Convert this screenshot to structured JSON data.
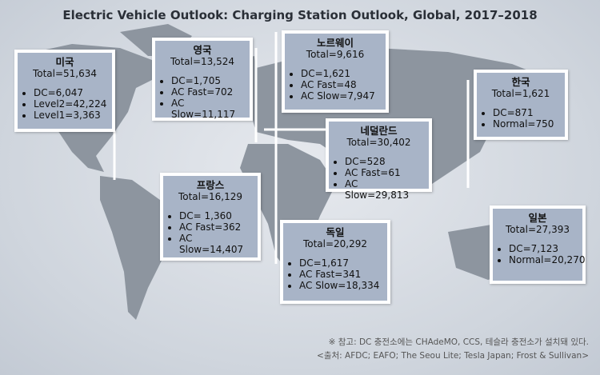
{
  "title": "Electric Vehicle Outlook: Charging Station Outlook, Global, 2017–2018",
  "boxes": [
    {
      "name": "미국",
      "total": "Total=51,634",
      "items": [
        "DC=6,047",
        "Level2=42,224",
        "Level1=3,363"
      ]
    },
    {
      "name": "영국",
      "total": "Total=13,524",
      "items": [
        "DC=1,705",
        "AC Fast=702",
        "AC Slow=11,117"
      ]
    },
    {
      "name": "노르웨이",
      "total": "Total=9,616",
      "items": [
        "DC=1,621",
        "AC Fast=48",
        "AC Slow=7,947"
      ]
    },
    {
      "name": "한국",
      "total": "Total=1,621",
      "items": [
        "DC=871",
        "Normal=750"
      ]
    },
    {
      "name": "네덜란드",
      "total": "Total=30,402",
      "items": [
        "DC=528",
        "AC Fast=61",
        "AC Slow=29,813"
      ]
    },
    {
      "name": "프랑스",
      "total": "Total=16,129",
      "items": [
        "DC= 1,360",
        "AC Fast=362",
        "AC Slow=14,407"
      ]
    },
    {
      "name": "독일",
      "total": "Total=20,292",
      "items": [
        "DC=1,617",
        "AC Fast=341",
        "AC Slow=18,334"
      ]
    },
    {
      "name": "일본",
      "total": "Total=27,393",
      "items": [
        "DC=7,123",
        "Normal=20,270"
      ]
    }
  ],
  "notes": [
    "※ 참고: DC 충전소에는 CHAdeMO, CCS, 테슬라 충전소가 설치돼 있다.",
    "<출처: AFDC; EAFO; The Seou Lite; Tesla Japan; Frost & Sullivan>"
  ]
}
